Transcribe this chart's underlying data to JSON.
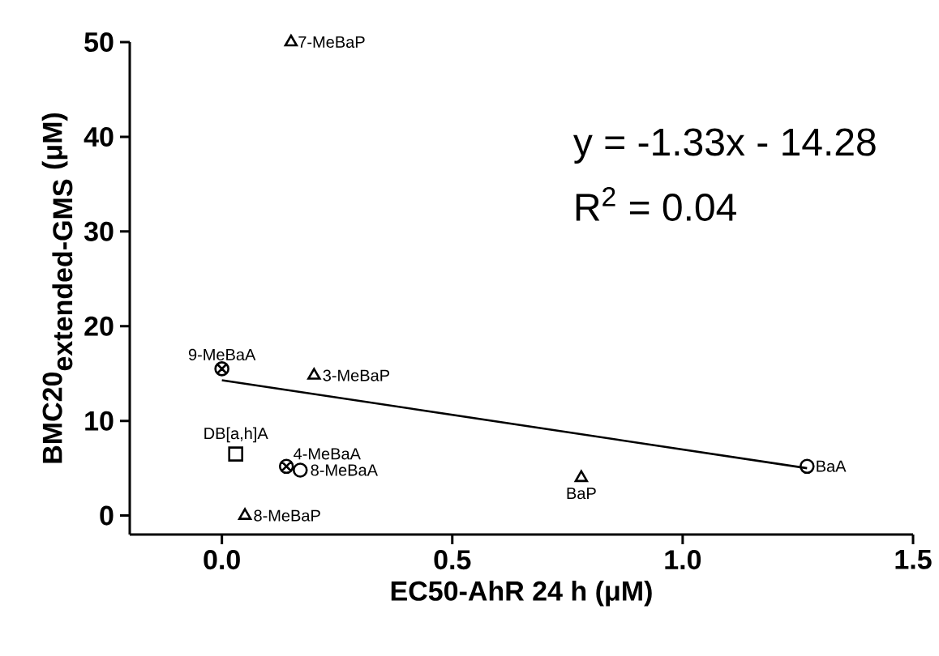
{
  "chart_data": {
    "type": "scatter",
    "xlabel": "EC50-AhR 24 h (μM)",
    "ylabel": "\\textbf{BMC20}_{\\textbf{extended-GMS}}\\ \\textbf{(μM)}",
    "annotations": [
      "y = -1.33x - 14.28",
      "R$^{2}$ = 0.04"
    ],
    "xlim": [
      -0.2,
      1.5
    ],
    "ylim": [
      -2,
      50
    ],
    "xticks": [
      {
        "value": 0,
        "label": "0.0"
      },
      0.5,
      {
        "value": 1,
        "label": "1.0"
      },
      1.5
    ],
    "yticks": [
      0,
      10,
      20,
      30,
      40,
      50
    ],
    "grid": false,
    "series": [
      {
        "name": "7-MeBaP",
        "color": "#000000",
        "marker": "triangle",
        "x": [
          0.15
        ],
        "values": [
          50
        ]
      },
      {
        "name": "9-MeBaA",
        "color": "#000000",
        "marker": "cross",
        "x": [
          0.0
        ],
        "values": [
          15.5
        ]
      },
      {
        "name": "3-MeBaP",
        "color": "#000000",
        "marker": "triangle",
        "x": [
          0.2
        ],
        "values": [
          14.8
        ]
      },
      {
        "name": "DB[a,h]A",
        "color": "#000000",
        "marker": "square",
        "x": [
          0.03
        ],
        "values": [
          6.5
        ]
      },
      {
        "name": "4-MeBaA",
        "color": "#000000",
        "marker": "cross",
        "x": [
          0.14
        ],
        "values": [
          5.2
        ]
      },
      {
        "name": "8-MeBaA",
        "color": "#000000",
        "marker": "circle",
        "x": [
          0.17
        ],
        "values": [
          4.8
        ]
      },
      {
        "name": "BaA",
        "color": "#000000",
        "marker": "circle",
        "x": [
          1.27
        ],
        "values": [
          5.2
        ]
      },
      {
        "name": "BaP",
        "color": "#000000",
        "marker": "triangle",
        "x": [
          0.78
        ],
        "values": [
          4.0
        ]
      },
      {
        "name": "8-MeBaP",
        "color": "#000000",
        "marker": "triangle",
        "x": [
          0.05
        ],
        "values": [
          0
        ]
      },
      {
        "type": "line",
        "color": "#000000",
        "marker": "none",
        "x": [
          0,
          1.27
        ],
        "values": [
          14.3,
          5.0
        ]
      }
    ]
  }
}
